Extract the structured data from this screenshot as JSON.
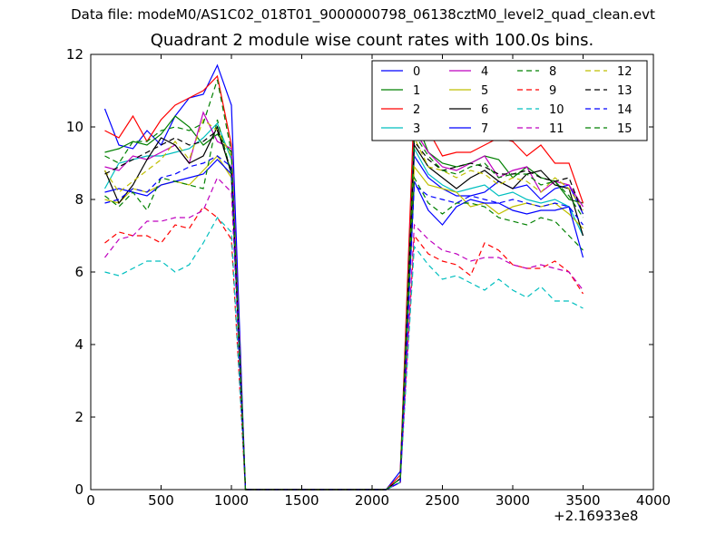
{
  "chart_data": {
    "type": "line",
    "suptitle": "Data file: modeM0/AS1C02_018T01_9000000798_06138cztM0_level2_quad_clean.evt",
    "title": "Quadrant 2 module wise count rates with 100.0s bins.",
    "xlabel": "",
    "ylabel": "",
    "x_offset_label": "+2.16933e8",
    "xlim": [
      0,
      4000
    ],
    "ylim": [
      0,
      12
    ],
    "x_ticks": [
      0,
      500,
      1000,
      1500,
      2000,
      2500,
      3000,
      3500,
      4000
    ],
    "y_ticks": [
      0,
      2,
      4,
      6,
      8,
      10,
      12
    ],
    "grid": false,
    "legend": "top-right, 4 columns",
    "x": [
      100,
      200,
      300,
      400,
      500,
      600,
      700,
      800,
      900,
      1000,
      1100,
      1200,
      1300,
      1400,
      1500,
      1600,
      1700,
      1800,
      1900,
      2000,
      2100,
      2200,
      2300,
      2400,
      2500,
      2600,
      2700,
      2800,
      2900,
      3000,
      3100,
      3200,
      3300,
      3400,
      3500
    ],
    "series": [
      {
        "name": "0",
        "color": "#0000ff",
        "dash": false,
        "values": [
          10.5,
          9.5,
          9.4,
          9.9,
          9.5,
          10.3,
          10.8,
          10.9,
          11.7,
          10.6,
          0,
          0,
          0,
          0,
          0,
          0,
          0,
          0,
          0,
          0,
          0,
          0.5,
          9.2,
          8.6,
          8.3,
          8.1,
          8.1,
          8.2,
          8.5,
          8.3,
          8.4,
          8.0,
          8.3,
          8.4,
          7.6
        ]
      },
      {
        "name": "1",
        "color": "#008000",
        "dash": false,
        "values": [
          9.3,
          9.4,
          9.6,
          9.5,
          9.8,
          10.3,
          10.0,
          9.5,
          9.8,
          9.3,
          0,
          0,
          0,
          0,
          0,
          0,
          0,
          0,
          0,
          0,
          0,
          0.3,
          10.3,
          9.3,
          9.0,
          8.9,
          9.0,
          9.2,
          9.1,
          8.6,
          8.9,
          8.6,
          8.5,
          8.0,
          7.9
        ]
      },
      {
        "name": "2",
        "color": "#ff0000",
        "dash": false,
        "values": [
          9.9,
          9.7,
          10.3,
          9.6,
          10.2,
          10.6,
          10.8,
          11.0,
          11.4,
          9.5,
          0,
          0,
          0,
          0,
          0,
          0,
          0,
          0,
          0,
          0,
          0,
          0.4,
          10.7,
          9.9,
          9.2,
          9.3,
          9.3,
          9.5,
          9.7,
          9.6,
          9.2,
          9.5,
          9.0,
          9.0,
          7.9
        ]
      },
      {
        "name": "3",
        "color": "#00bfbf",
        "dash": false,
        "values": [
          8.3,
          9.0,
          9.1,
          9.2,
          9.2,
          9.3,
          9.4,
          9.7,
          10.1,
          9.1,
          0,
          0,
          0,
          0,
          0,
          0,
          0,
          0,
          0,
          0,
          0,
          0.3,
          9.4,
          8.7,
          8.4,
          8.2,
          8.3,
          8.4,
          8.1,
          8.2,
          8.0,
          7.9,
          8.0,
          7.8,
          7.0
        ]
      },
      {
        "name": "4",
        "color": "#bf00bf",
        "dash": false,
        "values": [
          8.9,
          8.8,
          9.2,
          9.1,
          9.3,
          9.5,
          9.0,
          10.4,
          9.6,
          9.4,
          0,
          0,
          0,
          0,
          0,
          0,
          0,
          0,
          0,
          0,
          0,
          0.3,
          9.9,
          9.3,
          8.9,
          8.8,
          9.0,
          9.2,
          8.6,
          8.8,
          8.9,
          8.2,
          8.5,
          8.4,
          7.8
        ]
      },
      {
        "name": "5",
        "color": "#bfbf00",
        "dash": false,
        "values": [
          8.0,
          7.9,
          8.3,
          8.2,
          8.4,
          8.5,
          8.4,
          8.8,
          9.2,
          8.6,
          0,
          0,
          0,
          0,
          0,
          0,
          0,
          0,
          0,
          0,
          0,
          0.2,
          8.9,
          8.4,
          8.3,
          8.2,
          7.8,
          7.9,
          7.6,
          7.8,
          7.9,
          7.8,
          7.9,
          7.6,
          7.2
        ]
      },
      {
        "name": "6",
        "color": "#000000",
        "dash": false,
        "values": [
          8.8,
          7.9,
          8.4,
          9.1,
          9.7,
          9.5,
          9.0,
          9.2,
          10.0,
          8.7,
          0,
          0,
          0,
          0,
          0,
          0,
          0,
          0,
          0,
          0,
          0,
          0.2,
          9.5,
          8.9,
          8.6,
          8.3,
          8.6,
          8.8,
          8.5,
          8.3,
          8.7,
          8.8,
          8.4,
          8.3,
          7.0
        ]
      },
      {
        "name": "7",
        "color": "#0000ff",
        "dash": false,
        "values": [
          8.2,
          8.3,
          8.2,
          8.1,
          8.4,
          8.5,
          8.6,
          8.7,
          9.1,
          8.7,
          0,
          0,
          0,
          0,
          0,
          0,
          0,
          0,
          0,
          0,
          0,
          0.2,
          8.5,
          7.7,
          7.3,
          7.8,
          8.0,
          7.9,
          7.9,
          7.7,
          7.6,
          7.7,
          7.7,
          7.8,
          6.4
        ]
      },
      {
        "name": "8",
        "color": "#008000",
        "dash": true,
        "values": [
          8.1,
          7.8,
          8.2,
          7.7,
          8.6,
          8.5,
          8.4,
          8.3,
          10.2,
          8.7,
          0,
          0,
          0,
          0,
          0,
          0,
          0,
          0,
          0,
          0,
          0,
          0.2,
          8.6,
          7.9,
          7.6,
          7.9,
          7.9,
          7.8,
          7.5,
          7.4,
          7.3,
          7.5,
          7.4,
          7.0,
          6.6
        ]
      },
      {
        "name": "9",
        "color": "#ff0000",
        "dash": true,
        "values": [
          6.8,
          7.1,
          7.0,
          7.0,
          6.8,
          7.3,
          7.2,
          7.8,
          7.5,
          6.9,
          0,
          0,
          0,
          0,
          0,
          0,
          0,
          0,
          0,
          0,
          0,
          0.2,
          7.0,
          6.5,
          6.3,
          6.2,
          5.9,
          6.8,
          6.6,
          6.2,
          6.1,
          6.1,
          6.3,
          6.0,
          5.4
        ]
      },
      {
        "name": "10",
        "color": "#00bfbf",
        "dash": true,
        "values": [
          6.0,
          5.9,
          6.1,
          6.3,
          6.3,
          6.0,
          6.2,
          6.8,
          7.5,
          7.1,
          0,
          0,
          0,
          0,
          0,
          0,
          0,
          0,
          0,
          0,
          0,
          0.2,
          6.7,
          6.2,
          5.8,
          5.9,
          5.7,
          5.5,
          5.8,
          5.5,
          5.3,
          5.6,
          5.2,
          5.2,
          5.0
        ]
      },
      {
        "name": "11",
        "color": "#bf00bf",
        "dash": true,
        "values": [
          6.4,
          6.9,
          7.0,
          7.4,
          7.4,
          7.5,
          7.5,
          7.7,
          8.6,
          8.2,
          0,
          0,
          0,
          0,
          0,
          0,
          0,
          0,
          0,
          0,
          0,
          0.2,
          7.3,
          6.9,
          6.6,
          6.5,
          6.3,
          6.4,
          6.4,
          6.2,
          6.1,
          6.2,
          6.1,
          6.0,
          5.5
        ]
      },
      {
        "name": "12",
        "color": "#bfbf00",
        "dash": true,
        "values": [
          8.8,
          8.2,
          8.5,
          8.8,
          9.1,
          9.6,
          9.1,
          10.2,
          9.9,
          9.2,
          0,
          0,
          0,
          0,
          0,
          0,
          0,
          0,
          0,
          0,
          0,
          0.3,
          9.7,
          8.9,
          8.8,
          8.6,
          8.8,
          8.7,
          8.4,
          8.6,
          8.5,
          8.2,
          8.6,
          8.3,
          7.7
        ]
      },
      {
        "name": "13",
        "color": "#000000",
        "dash": true,
        "values": [
          8.7,
          8.9,
          9.1,
          9.3,
          9.5,
          9.7,
          9.5,
          9.6,
          9.9,
          8.8,
          0,
          0,
          0,
          0,
          0,
          0,
          0,
          0,
          0,
          0,
          0,
          0.3,
          9.6,
          9.1,
          8.8,
          8.9,
          9.0,
          8.9,
          8.7,
          8.7,
          8.8,
          8.6,
          8.5,
          8.6,
          7.6
        ]
      },
      {
        "name": "14",
        "color": "#0000ff",
        "dash": true,
        "values": [
          7.9,
          8.0,
          8.3,
          8.2,
          8.6,
          8.7,
          8.9,
          9.0,
          9.2,
          8.9,
          0,
          0,
          0,
          0,
          0,
          0,
          0,
          0,
          0,
          0,
          0,
          0.2,
          8.4,
          8.1,
          8.0,
          7.9,
          8.1,
          8.0,
          7.9,
          8.0,
          7.9,
          7.8,
          7.9,
          7.8,
          7.3
        ]
      },
      {
        "name": "15",
        "color": "#008000",
        "dash": true,
        "values": [
          9.2,
          9.0,
          9.6,
          9.6,
          9.9,
          10.0,
          9.9,
          10.1,
          11.3,
          9.3,
          0,
          0,
          0,
          0,
          0,
          0,
          0,
          0,
          0,
          0,
          0,
          0.3,
          9.8,
          9.2,
          8.8,
          8.7,
          8.9,
          9.0,
          8.6,
          8.7,
          8.7,
          8.4,
          8.5,
          8.1,
          7.5
        ]
      }
    ]
  }
}
